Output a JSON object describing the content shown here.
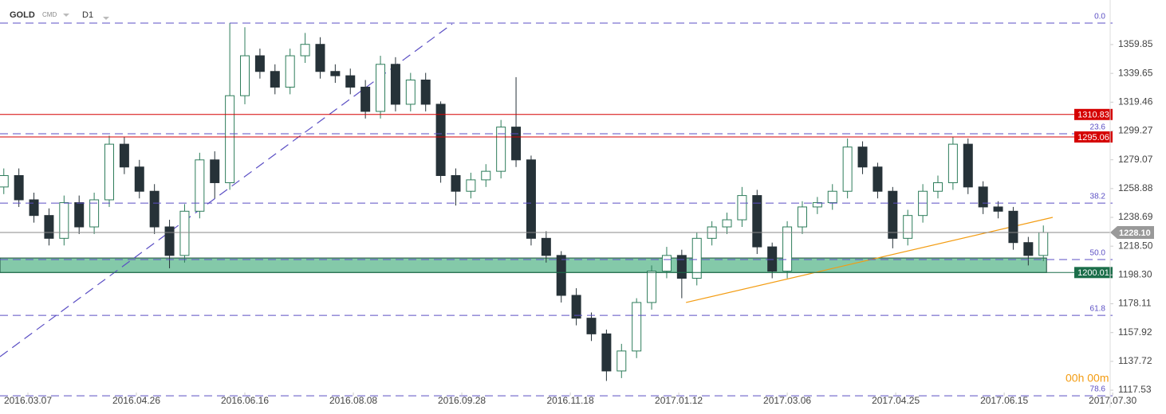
{
  "chart_data": {
    "type": "candlestick",
    "symbol": "GOLD",
    "source": "CMD",
    "interval": "D1",
    "countdown": "00h 00m",
    "x": [
      -8,
      -3,
      2,
      7,
      12,
      17,
      22,
      27,
      32,
      37,
      42,
      47,
      52,
      57,
      62,
      67,
      72,
      77,
      82,
      87,
      92,
      97,
      102,
      107,
      112,
      117,
      122,
      127,
      132,
      137,
      142,
      147,
      152,
      157,
      162,
      167,
      172,
      177,
      182,
      187,
      192,
      197,
      202,
      207,
      212,
      217,
      222,
      227,
      232,
      237,
      242,
      247,
      252,
      257,
      262,
      267,
      272,
      277,
      282,
      287,
      292,
      297,
      302,
      307,
      312,
      317,
      322,
      327,
      332,
      337
    ],
    "open": [
      1260,
      1268,
      1251,
      1240,
      1224,
      1249,
      1232,
      1251,
      1290,
      1274,
      1257,
      1232,
      1212,
      1243,
      1279,
      1263,
      1324,
      1352,
      1341,
      1330,
      1352,
      1360,
      1341,
      1338,
      1330,
      1313,
      1346,
      1318,
      1335,
      1318,
      1268,
      1257,
      1265,
      1271,
      1302,
      1279,
      1224,
      1212,
      1184,
      1168,
      1157,
      1131,
      1145,
      1179,
      1201,
      1212,
      1196,
      1224,
      1232,
      1237,
      1254,
      1218,
      1201,
      1232,
      1246,
      1249,
      1257,
      1288,
      1274,
      1257,
      1224,
      1240,
      1257,
      1263,
      1290,
      1260,
      1246,
      1243,
      1221,
      1212
    ],
    "high": [
      1273,
      1273,
      1256,
      1245,
      1254,
      1254,
      1256,
      1296,
      1295,
      1279,
      1262,
      1237,
      1248,
      1284,
      1285,
      1375,
      1372,
      1357,
      1346,
      1357,
      1368,
      1365,
      1346,
      1343,
      1335,
      1352,
      1351,
      1340,
      1340,
      1320,
      1273,
      1270,
      1276,
      1307,
      1337,
      1282,
      1229,
      1215,
      1189,
      1172,
      1160,
      1150,
      1182,
      1205,
      1218,
      1216,
      1228,
      1236,
      1242,
      1260,
      1258,
      1221,
      1236,
      1250,
      1253,
      1262,
      1294,
      1292,
      1277,
      1260,
      1244,
      1262,
      1268,
      1295,
      1294,
      1264,
      1250,
      1246,
      1225,
      1233
    ],
    "low": [
      1255,
      1246,
      1235,
      1219,
      1219,
      1227,
      1227,
      1246,
      1269,
      1252,
      1227,
      1203,
      1207,
      1238,
      1252,
      1258,
      1318,
      1336,
      1325,
      1325,
      1347,
      1336,
      1333,
      1325,
      1308,
      1308,
      1313,
      1313,
      1313,
      1263,
      1247,
      1252,
      1260,
      1266,
      1274,
      1219,
      1207,
      1179,
      1163,
      1152,
      1124,
      1126,
      1140,
      1174,
      1196,
      1182,
      1191,
      1219,
      1227,
      1232,
      1213,
      1196,
      1196,
      1227,
      1241,
      1244,
      1252,
      1269,
      1252,
      1217,
      1219,
      1235,
      1252,
      1258,
      1255,
      1241,
      1238,
      1216,
      1205,
      1208
    ],
    "close": [
      1268,
      1251,
      1240,
      1224,
      1249,
      1232,
      1251,
      1290,
      1274,
      1257,
      1232,
      1212,
      1243,
      1279,
      1263,
      1324,
      1352,
      1341,
      1330,
      1352,
      1360,
      1341,
      1338,
      1330,
      1313,
      1346,
      1318,
      1335,
      1318,
      1268,
      1257,
      1265,
      1271,
      1302,
      1279,
      1224,
      1212,
      1184,
      1168,
      1157,
      1131,
      1145,
      1179,
      1201,
      1212,
      1196,
      1224,
      1232,
      1237,
      1254,
      1218,
      1201,
      1232,
      1246,
      1249,
      1257,
      1288,
      1274,
      1257,
      1224,
      1240,
      1257,
      1263,
      1290,
      1260,
      1246,
      1243,
      1221,
      1212,
      1228.1
    ],
    "up_color": "#2e7d5b",
    "down_color": "#263238",
    "xlim": [
      -9.26,
      377.7
    ],
    "xticks": [
      {
        "value": 0,
        "label": "2016.03.07"
      },
      {
        "value": 36,
        "label": "2016.04.26"
      },
      {
        "value": 72,
        "label": "2016.06.16"
      },
      {
        "value": 108,
        "label": "2016.08.08"
      },
      {
        "value": 144,
        "label": "2016.09.28"
      },
      {
        "value": 180,
        "label": "2016.11.18"
      },
      {
        "value": 216,
        "label": "2017.01.12"
      },
      {
        "value": 252,
        "label": "2017.03.06"
      },
      {
        "value": 288,
        "label": "2017.04.25"
      },
      {
        "value": 324,
        "label": "2017.06.15"
      },
      {
        "value": 360,
        "label": "2017.07.30"
      }
    ],
    "ylim": [
      1106.4,
      1391.1
    ],
    "yticks": [
      1359.85,
      1339.65,
      1319.46,
      1299.27,
      1279.07,
      1258.88,
      1238.69,
      {
        "value": 1218.5,
        "label": "1218.50"
      },
      {
        "value": 1198.3,
        "label": "1198.30"
      },
      1178.11,
      1157.92,
      1137.72,
      1117.53
    ],
    "fib_levels": [
      {
        "label": "0.0",
        "price": 1374.9
      },
      {
        "label": "23.6",
        "price": 1297.3
      },
      {
        "label": "38.2",
        "price": 1248.7
      },
      {
        "label": "50.0",
        "price": 1209.1
      },
      {
        "label": "61.8",
        "price": 1170.0
      },
      {
        "label": "78.6",
        "price": 1113.6
      }
    ],
    "fib_color": "#5b4fc4",
    "levels": [
      {
        "value": 1310.83,
        "color": "#d50000"
      },
      {
        "value": 1295.06,
        "color": "#d50000"
      },
      {
        "value": 1200.01,
        "color": "#1b6e4a"
      },
      {
        "value": 1228.1,
        "value_label": "1228.10",
        "color": "#999999"
      }
    ],
    "zone": {
      "from": 1200.01,
      "to": 1210.2,
      "color": "#6fbf9a"
    },
    "trendlines": [
      {
        "x": [
          -9.26,
          140.8
        ],
        "y": [
          1141,
          1374.3
        ],
        "color": "#5b4fc4",
        "dashed": true
      },
      {
        "x": [
          218.4,
          340.1
        ],
        "y": [
          1179,
          1238.7
        ],
        "color": "#f39c12",
        "dashed": false
      }
    ]
  }
}
